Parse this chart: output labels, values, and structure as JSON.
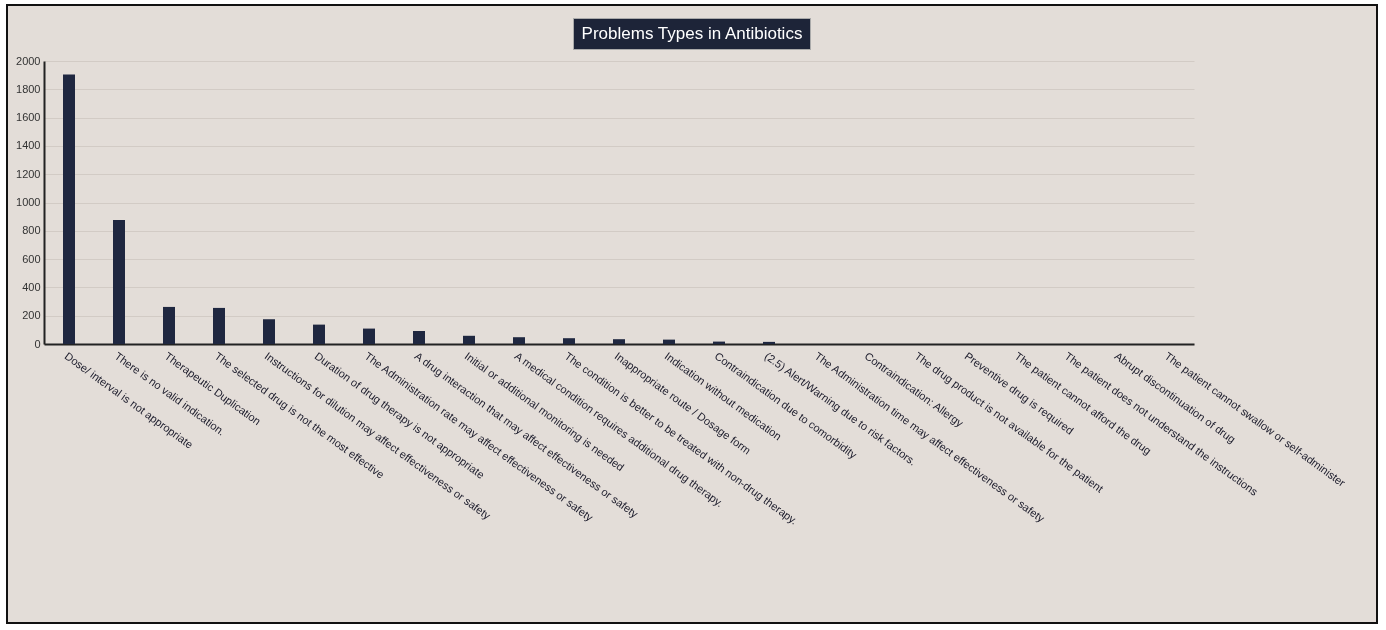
{
  "chart_data": {
    "type": "bar",
    "title": "Problems Types in Antibiotics",
    "categories": [
      "Dose/ interval is not appropriate",
      "There is no valid indication.",
      "Therapeutic Duplication",
      "The selected drug is not the most effective",
      "Instructions for dilution may affect effectiveness or safety",
      "Duration of drug therapy is not appropriate",
      "The Administration rate may affect effectiveness or safety",
      "A drug interaction that may affect effectiveness or safety",
      "Initial or additional monitoring is needed",
      "A medical condition requires additional drug therapy.",
      "The condition is better to be treated with non-drug therapy.",
      "Inappropriate route / Dosage form",
      "Indication without medication",
      "Contraindication due to comorbidity",
      "(2.5) Alert/Warning due to risk factors.",
      "The Administration time may affect effectiveness or safety",
      "Contraindication: Allergy",
      "The drug product is not available for the patient",
      "Preventive drug is required",
      "The patient cannot afford the drug",
      "The patient does not understand the instructions",
      "Abrupt discontinuation of drug",
      "The patient cannot swallow or self-administer"
    ],
    "values": [
      1905,
      877,
      262,
      255,
      175,
      137,
      109,
      92,
      58,
      48,
      41,
      34,
      31,
      17,
      15,
      null,
      null,
      0,
      0,
      0,
      0,
      0,
      0
    ],
    "color": "#1f2740",
    "ylim": [
      0,
      2000
    ],
    "yticks": [
      0,
      200,
      400,
      600,
      800,
      1000,
      1200,
      1400,
      1600,
      1800,
      2000
    ],
    "grid": "y"
  }
}
